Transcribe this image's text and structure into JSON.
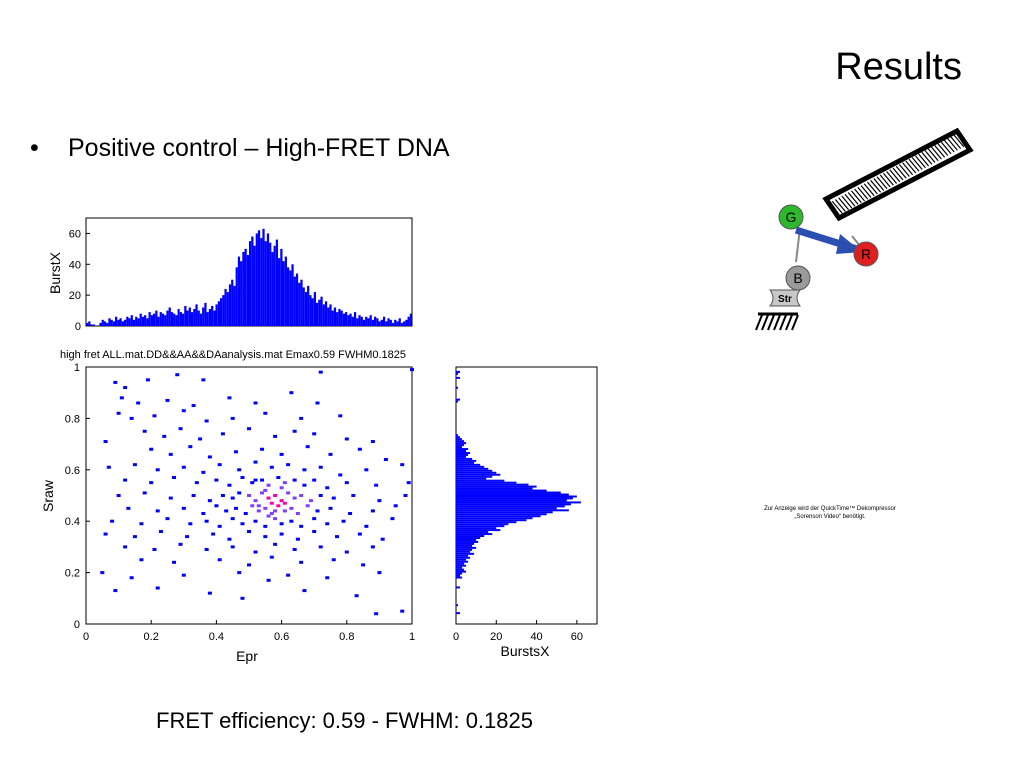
{
  "slide": {
    "title": "Results",
    "bullet_symbol": "•",
    "bullet_text": "Positive control – High-FRET DNA",
    "caption": "FRET efficiency: 0.59 - FWHM: 0.1825",
    "quicktime_note": "Zur Anzeige wird der QuickTime™ Dekompressor „Sorenson Video“ benötigt."
  },
  "diagram": {
    "labels": [
      "G",
      "R",
      "B",
      "Str"
    ],
    "colors": {
      "G": "#2db82d",
      "R": "#e02020",
      "B": "#9a9a9a",
      "arrow": "#2a4fb0"
    }
  },
  "chart_data": [
    {
      "type": "bar",
      "panel": "top-histogram",
      "ylabel": "BurstX",
      "ylim": [
        0,
        70
      ],
      "yticks": [
        0,
        20,
        40,
        60
      ],
      "xlim": [
        0,
        1
      ],
      "color": "#0000ff",
      "values": [
        2,
        3,
        1,
        1,
        0,
        0,
        2,
        4,
        3,
        2,
        5,
        4,
        3,
        6,
        4,
        5,
        3,
        4,
        6,
        5,
        7,
        4,
        6,
        5,
        8,
        6,
        7,
        5,
        9,
        7,
        8,
        10,
        6,
        9,
        8,
        7,
        10,
        12,
        9,
        8,
        7,
        11,
        9,
        8,
        13,
        10,
        12,
        9,
        11,
        14,
        10,
        8,
        12,
        15,
        9,
        11,
        13,
        10,
        14,
        16,
        18,
        20,
        24,
        22,
        27,
        30,
        26,
        38,
        45,
        42,
        48,
        50,
        46,
        55,
        58,
        52,
        60,
        62,
        57,
        63,
        55,
        60,
        54,
        48,
        52,
        56,
        44,
        50,
        42,
        45,
        38,
        36,
        40,
        32,
        34,
        28,
        30,
        25,
        22,
        26,
        20,
        18,
        22,
        15,
        17,
        19,
        14,
        16,
        12,
        14,
        10,
        12,
        9,
        11,
        10,
        8,
        9,
        7,
        8,
        6,
        9,
        5,
        7,
        6,
        4,
        6,
        5,
        7,
        4,
        6,
        5,
        3,
        4,
        6,
        3,
        5,
        4,
        2,
        4,
        3,
        5,
        2,
        3,
        4,
        6,
        8
      ]
    },
    {
      "type": "scatter",
      "panel": "main-2d-histogram",
      "title": "high fret ALL.mat.DD&&AA&&DAanalysis.mat Emax0.59 FWHM0.1825",
      "xlabel": "Epr",
      "ylabel": "Sraw",
      "xlim": [
        0,
        1
      ],
      "ylim": [
        0,
        1
      ],
      "xticks": [
        0,
        0.2,
        0.4,
        0.6,
        0.8,
        1
      ],
      "yticks": [
        0,
        0.2,
        0.4,
        0.6,
        0.8,
        1
      ],
      "center": {
        "x": 0.59,
        "y": 0.48
      },
      "point_colors": {
        "low": "#0000ff",
        "mid": "#7f3fff",
        "high": "#ff00aa"
      },
      "points": [
        [
          0.09,
          0.94
        ],
        [
          0.12,
          0.92
        ],
        [
          0.19,
          0.95
        ],
        [
          0.28,
          0.97
        ],
        [
          0.36,
          0.95
        ],
        [
          0.72,
          0.98
        ],
        [
          1.0,
          0.99
        ],
        [
          0.11,
          0.88
        ],
        [
          0.16,
          0.86
        ],
        [
          0.25,
          0.87
        ],
        [
          0.33,
          0.85
        ],
        [
          0.44,
          0.88
        ],
        [
          0.52,
          0.86
        ],
        [
          0.63,
          0.9
        ],
        [
          0.71,
          0.86
        ],
        [
          0.1,
          0.82
        ],
        [
          0.14,
          0.8
        ],
        [
          0.21,
          0.81
        ],
        [
          0.3,
          0.83
        ],
        [
          0.37,
          0.79
        ],
        [
          0.45,
          0.8
        ],
        [
          0.55,
          0.82
        ],
        [
          0.66,
          0.8
        ],
        [
          0.78,
          0.81
        ],
        [
          0.18,
          0.75
        ],
        [
          0.24,
          0.73
        ],
        [
          0.29,
          0.76
        ],
        [
          0.35,
          0.72
        ],
        [
          0.42,
          0.74
        ],
        [
          0.5,
          0.76
        ],
        [
          0.58,
          0.73
        ],
        [
          0.64,
          0.75
        ],
        [
          0.7,
          0.74
        ],
        [
          0.8,
          0.72
        ],
        [
          0.88,
          0.71
        ],
        [
          0.06,
          0.71
        ],
        [
          0.2,
          0.68
        ],
        [
          0.26,
          0.66
        ],
        [
          0.32,
          0.69
        ],
        [
          0.38,
          0.65
        ],
        [
          0.46,
          0.67
        ],
        [
          0.54,
          0.68
        ],
        [
          0.6,
          0.66
        ],
        [
          0.68,
          0.69
        ],
        [
          0.75,
          0.66
        ],
        [
          0.84,
          0.68
        ],
        [
          0.92,
          0.64
        ],
        [
          0.15,
          0.62
        ],
        [
          0.22,
          0.6
        ],
        [
          0.3,
          0.61
        ],
        [
          0.36,
          0.59
        ],
        [
          0.41,
          0.62
        ],
        [
          0.47,
          0.6
        ],
        [
          0.52,
          0.63
        ],
        [
          0.57,
          0.61
        ],
        [
          0.62,
          0.62
        ],
        [
          0.67,
          0.6
        ],
        [
          0.72,
          0.61
        ],
        [
          0.78,
          0.58
        ],
        [
          0.86,
          0.6
        ],
        [
          0.97,
          0.62
        ],
        [
          0.07,
          0.61
        ],
        [
          0.12,
          0.56
        ],
        [
          0.2,
          0.55
        ],
        [
          0.27,
          0.57
        ],
        [
          0.34,
          0.55
        ],
        [
          0.4,
          0.56
        ],
        [
          0.44,
          0.54
        ],
        [
          0.48,
          0.57
        ],
        [
          0.51,
          0.55
        ],
        [
          0.54,
          0.56
        ],
        [
          0.56,
          0.54
        ],
        [
          0.59,
          0.57
        ],
        [
          0.61,
          0.55
        ],
        [
          0.64,
          0.56
        ],
        [
          0.67,
          0.54
        ],
        [
          0.7,
          0.56
        ],
        [
          0.74,
          0.53
        ],
        [
          0.8,
          0.55
        ],
        [
          0.89,
          0.54
        ],
        [
          0.99,
          0.55
        ],
        [
          0.1,
          0.5
        ],
        [
          0.18,
          0.51
        ],
        [
          0.26,
          0.49
        ],
        [
          0.33,
          0.5
        ],
        [
          0.38,
          0.48
        ],
        [
          0.42,
          0.5
        ],
        [
          0.45,
          0.49
        ],
        [
          0.47,
          0.51
        ],
        [
          0.5,
          0.5
        ],
        [
          0.52,
          0.48
        ],
        [
          0.54,
          0.51
        ],
        [
          0.56,
          0.49
        ],
        [
          0.58,
          0.5
        ],
        [
          0.6,
          0.48
        ],
        [
          0.62,
          0.51
        ],
        [
          0.64,
          0.49
        ],
        [
          0.66,
          0.5
        ],
        [
          0.69,
          0.48
        ],
        [
          0.72,
          0.5
        ],
        [
          0.76,
          0.49
        ],
        [
          0.82,
          0.5
        ],
        [
          0.9,
          0.48
        ],
        [
          0.98,
          0.5
        ],
        [
          0.13,
          0.45
        ],
        [
          0.22,
          0.44
        ],
        [
          0.3,
          0.45
        ],
        [
          0.36,
          0.43
        ],
        [
          0.4,
          0.46
        ],
        [
          0.43,
          0.44
        ],
        [
          0.46,
          0.45
        ],
        [
          0.49,
          0.43
        ],
        [
          0.51,
          0.46
        ],
        [
          0.53,
          0.44
        ],
        [
          0.55,
          0.45
        ],
        [
          0.57,
          0.43
        ],
        [
          0.59,
          0.46
        ],
        [
          0.61,
          0.44
        ],
        [
          0.63,
          0.45
        ],
        [
          0.65,
          0.43
        ],
        [
          0.68,
          0.46
        ],
        [
          0.71,
          0.44
        ],
        [
          0.75,
          0.45
        ],
        [
          0.81,
          0.43
        ],
        [
          0.88,
          0.44
        ],
        [
          0.95,
          0.46
        ],
        [
          0.08,
          0.4
        ],
        [
          0.17,
          0.39
        ],
        [
          0.25,
          0.41
        ],
        [
          0.32,
          0.39
        ],
        [
          0.37,
          0.4
        ],
        [
          0.41,
          0.38
        ],
        [
          0.45,
          0.41
        ],
        [
          0.48,
          0.39
        ],
        [
          0.52,
          0.4
        ],
        [
          0.55,
          0.38
        ],
        [
          0.58,
          0.41
        ],
        [
          0.6,
          0.39
        ],
        [
          0.63,
          0.4
        ],
        [
          0.66,
          0.38
        ],
        [
          0.7,
          0.41
        ],
        [
          0.74,
          0.39
        ],
        [
          0.79,
          0.4
        ],
        [
          0.86,
          0.38
        ],
        [
          0.94,
          0.41
        ],
        [
          0.06,
          0.35
        ],
        [
          0.15,
          0.34
        ],
        [
          0.23,
          0.36
        ],
        [
          0.31,
          0.34
        ],
        [
          0.39,
          0.35
        ],
        [
          0.44,
          0.33
        ],
        [
          0.5,
          0.36
        ],
        [
          0.55,
          0.34
        ],
        [
          0.6,
          0.35
        ],
        [
          0.65,
          0.33
        ],
        [
          0.7,
          0.36
        ],
        [
          0.77,
          0.34
        ],
        [
          0.84,
          0.35
        ],
        [
          0.91,
          0.33
        ],
        [
          0.12,
          0.3
        ],
        [
          0.21,
          0.29
        ],
        [
          0.29,
          0.31
        ],
        [
          0.37,
          0.29
        ],
        [
          0.45,
          0.3
        ],
        [
          0.52,
          0.28
        ],
        [
          0.58,
          0.31
        ],
        [
          0.64,
          0.29
        ],
        [
          0.72,
          0.3
        ],
        [
          0.8,
          0.28
        ],
        [
          0.88,
          0.3
        ],
        [
          0.17,
          0.25
        ],
        [
          0.27,
          0.24
        ],
        [
          0.41,
          0.25
        ],
        [
          0.5,
          0.23
        ],
        [
          0.57,
          0.26
        ],
        [
          0.66,
          0.24
        ],
        [
          0.76,
          0.25
        ],
        [
          0.85,
          0.23
        ],
        [
          0.05,
          0.2
        ],
        [
          0.14,
          0.18
        ],
        [
          0.3,
          0.19
        ],
        [
          0.47,
          0.2
        ],
        [
          0.56,
          0.17
        ],
        [
          0.62,
          0.19
        ],
        [
          0.74,
          0.18
        ],
        [
          0.9,
          0.2
        ],
        [
          0.22,
          0.14
        ],
        [
          0.38,
          0.12
        ],
        [
          0.48,
          0.1
        ],
        [
          0.67,
          0.13
        ],
        [
          0.83,
          0.11
        ],
        [
          0.09,
          0.13
        ],
        [
          0.97,
          0.05
        ],
        [
          0.89,
          0.04
        ],
        [
          0.52,
          0.56
        ],
        [
          0.55,
          0.52
        ],
        [
          0.57,
          0.47
        ],
        [
          0.6,
          0.53
        ],
        [
          0.53,
          0.46
        ],
        [
          0.58,
          0.44
        ],
        [
          0.56,
          0.42
        ],
        [
          0.61,
          0.47
        ]
      ]
    },
    {
      "type": "bar",
      "orientation": "horizontal",
      "panel": "right-histogram",
      "xlabel": "BurstsX",
      "xlim": [
        0,
        70
      ],
      "xticks": [
        0,
        20,
        40,
        60
      ],
      "ylim": [
        0,
        1
      ],
      "color": "#0000ff",
      "values": [
        0,
        0,
        2,
        1,
        0,
        2,
        0,
        0,
        0,
        0,
        1,
        0,
        0,
        0,
        0,
        0,
        2,
        1,
        0,
        0,
        0,
        0,
        0,
        0,
        0,
        0,
        0,
        0,
        0,
        0,
        0,
        0,
        0,
        0,
        1,
        2,
        3,
        4,
        5,
        4,
        3,
        6,
        5,
        7,
        6,
        5,
        8,
        10,
        9,
        12,
        14,
        16,
        18,
        20,
        22,
        18,
        15,
        24,
        30,
        36,
        40,
        38,
        45,
        52,
        56,
        60,
        58,
        55,
        62,
        57,
        54,
        50,
        56,
        48,
        45,
        42,
        38,
        35,
        30,
        26,
        24,
        20,
        22,
        16,
        18,
        14,
        12,
        10,
        11,
        9,
        8,
        10,
        8,
        7,
        9,
        6,
        7,
        5,
        6,
        4,
        5,
        3,
        4,
        5,
        3,
        2,
        3,
        0,
        0,
        0,
        0,
        2,
        0,
        0,
        0,
        0,
        0,
        0,
        0,
        0,
        1,
        0,
        0,
        0,
        2,
        0,
        0,
        0,
        0,
        0
      ]
    }
  ]
}
